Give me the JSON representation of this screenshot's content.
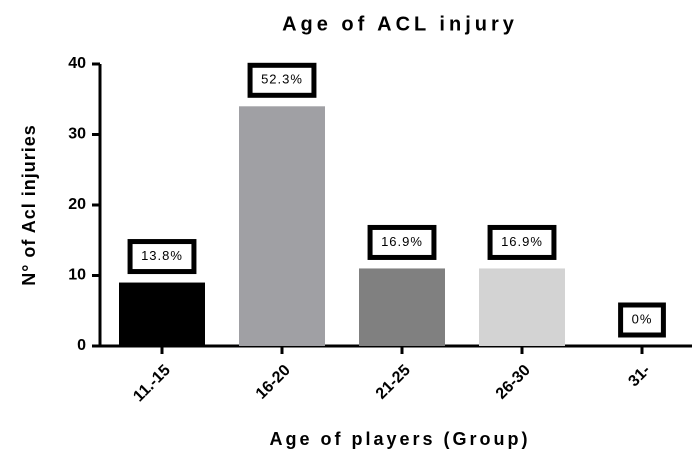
{
  "chart_data": {
    "type": "bar",
    "title": "Age of ACL injury",
    "x_label": "Age of players (Group)",
    "y_label": "N° of Acl injuries",
    "categories": [
      "11.-15",
      "16-20",
      "21-25",
      "26-30",
      "31-"
    ],
    "values": [
      9,
      34,
      11,
      11,
      0
    ],
    "colors": [
      "#000000",
      "#a0a0a4",
      "#808080",
      "#d3d3d3",
      "#ffffff"
    ],
    "annotations": [
      "13.8%",
      "52.3%",
      "16.9%",
      "16.9%",
      "0%"
    ],
    "ylim": [
      0,
      40
    ],
    "yticks": [
      0,
      10,
      20,
      30,
      40
    ],
    "grid": false
  }
}
